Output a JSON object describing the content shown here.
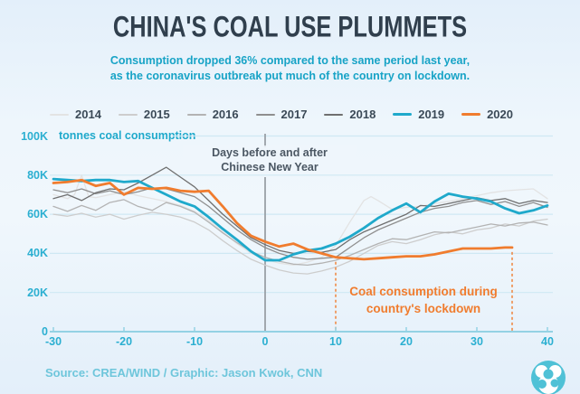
{
  "title": "CHINA'S COAL USE PLUMMETS",
  "subtitle_line1": "Consumption dropped 36% compared to the same period last year,",
  "subtitle_line2": "as the coronavirus outbreak put much of the country on lockdown.",
  "unit_label": "tonnes coal consumption",
  "annotations": {
    "cny_line1": "Days before and after",
    "cny_line2": "Chinese New Year",
    "lockdown_line1": "Coal consumption during",
    "lockdown_line2": "country's lockdown"
  },
  "source": "Source: CREA/WIND / Graphic: Jason Kwok, CNN",
  "logo_name": "crea-cnn-logo",
  "colors": {
    "title": "#303f4d",
    "subtitle": "#17a3c6",
    "axis_text": "#2bafd1",
    "axis_line": "#94d2e4",
    "gridline": "#cfe8f3",
    "cny_line": "#9aa0a6",
    "annotation_text": "#4b5763",
    "lockdown": "#f07c2e",
    "source_text": "#6ec6db",
    "logo": "#4fc1d6",
    "background_top": "#e3effa"
  },
  "chart_data": {
    "type": "line",
    "title": "CHINA'S COAL USE PLUMMETS",
    "xlabel": "Days before and after Chinese New Year",
    "ylabel": "tonnes coal consumption",
    "values_unit": "thousand tonnes (K)",
    "xlim": [
      -30,
      40
    ],
    "ylim_k": [
      0,
      100
    ],
    "grid": true,
    "legend_position": "top",
    "x_ticks": [
      -30,
      -20,
      -10,
      0,
      10,
      20,
      30,
      40
    ],
    "y_ticks": [
      {
        "label": "100K",
        "value": 100
      },
      {
        "label": "80K",
        "value": 80
      },
      {
        "label": "60K",
        "value": 60
      },
      {
        "label": "40K",
        "value": 40
      },
      {
        "label": "20K",
        "value": 20
      },
      {
        "label": "0",
        "value": 0
      }
    ],
    "cny_day": 0,
    "lockdown_span_days": [
      10,
      35
    ],
    "series": [
      {
        "name": "2014",
        "color": "#e3e3e3",
        "width": 1.3,
        "x": [
          -30,
          -28,
          -27,
          -26,
          -25,
          -24,
          -22,
          -20,
          -18,
          -16,
          -14,
          -12,
          -10,
          -8,
          -6,
          -4,
          -2,
          0,
          2,
          4,
          6,
          8,
          10,
          12,
          14,
          15,
          16,
          18,
          20,
          22,
          24,
          26,
          28,
          30,
          32,
          34,
          36,
          38,
          40
        ],
        "y": [
          70,
          68,
          70,
          80,
          69,
          68.5,
          70,
          71.5,
          69.5,
          68,
          66.5,
          64.5,
          61.5,
          57,
          51,
          45,
          40,
          37,
          35,
          34,
          35.5,
          38,
          44,
          56,
          67,
          69,
          67,
          62.5,
          63.5,
          64,
          65.5,
          66.5,
          68,
          69.5,
          71,
          72,
          72.5,
          73,
          68
        ]
      },
      {
        "name": "2015",
        "color": "#cdcdcd",
        "width": 1.3,
        "x": [
          -30,
          -28,
          -26,
          -24,
          -22,
          -20,
          -18,
          -16,
          -14,
          -12,
          -10,
          -8,
          -6,
          -4,
          -2,
          0,
          2,
          4,
          6,
          8,
          10,
          12,
          14,
          16,
          18,
          20,
          22,
          24,
          26,
          28,
          30,
          32,
          34,
          36,
          38,
          40
        ],
        "y": [
          60,
          59,
          60.5,
          58.5,
          60,
          57.5,
          59.5,
          61,
          60,
          58.5,
          56,
          52,
          46.5,
          41.5,
          37,
          34,
          31.5,
          30,
          29.5,
          31,
          33,
          36,
          40,
          44,
          46,
          45,
          47,
          49.5,
          51,
          50,
          52,
          53,
          55,
          54,
          56.5,
          57.5
        ]
      },
      {
        "name": "2016",
        "color": "#b3b3b3",
        "width": 1.3,
        "x": [
          -30,
          -28,
          -26,
          -24,
          -22,
          -20,
          -18,
          -16,
          -14,
          -12,
          -10,
          -8,
          -6,
          -4,
          -2,
          0,
          2,
          4,
          6,
          8,
          10,
          12,
          14,
          16,
          18,
          20,
          22,
          24,
          26,
          28,
          30,
          32,
          34,
          36,
          38,
          40
        ],
        "y": [
          64,
          61.5,
          64.5,
          62,
          66,
          67.5,
          64,
          62,
          66,
          64,
          61,
          56,
          50.5,
          45.5,
          41,
          38,
          36,
          34.5,
          34,
          35,
          36.5,
          39,
          42,
          45,
          47.5,
          47,
          49,
          51,
          50.5,
          52,
          53.5,
          55,
          54,
          55.5,
          56,
          54.5
        ]
      },
      {
        "name": "2017",
        "color": "#8f8f8f",
        "width": 1.3,
        "x": [
          -30,
          -28,
          -26,
          -24,
          -22,
          -20,
          -18,
          -16,
          -14,
          -12,
          -10,
          -8,
          -6,
          -4,
          -2,
          0,
          2,
          4,
          6,
          8,
          10,
          12,
          14,
          16,
          18,
          20,
          22,
          24,
          26,
          28,
          30,
          32,
          34,
          36,
          38,
          40
        ],
        "y": [
          72.5,
          71,
          73,
          70.5,
          72,
          70,
          71.5,
          73.5,
          73,
          71,
          69,
          64,
          58,
          52,
          47,
          43,
          40,
          38,
          37,
          37.5,
          38,
          43,
          48,
          52,
          55,
          58,
          61,
          63,
          64,
          66,
          67,
          65,
          66.5,
          64,
          66,
          63.5
        ]
      },
      {
        "name": "2018",
        "color": "#6f6f6f",
        "width": 1.3,
        "x": [
          -30,
          -28,
          -26,
          -24,
          -22,
          -20,
          -18,
          -16,
          -14,
          -12,
          -10,
          -8,
          -6,
          -4,
          -2,
          0,
          2,
          4,
          6,
          8,
          10,
          12,
          14,
          16,
          18,
          20,
          22,
          24,
          26,
          28,
          30,
          32,
          34,
          36,
          38,
          40
        ],
        "y": [
          68,
          70,
          67,
          71,
          73,
          72.5,
          76,
          80,
          84,
          79,
          74,
          67,
          60,
          54,
          48,
          44.5,
          41.5,
          40,
          41,
          40.5,
          42,
          47,
          51,
          54,
          57,
          60,
          64.5,
          64,
          65.5,
          67,
          68.5,
          67,
          68,
          65.5,
          67,
          66
        ]
      },
      {
        "name": "2019",
        "color": "#1fa9cb",
        "width": 2.8,
        "x": [
          -30,
          -28,
          -26,
          -24,
          -22,
          -20,
          -18,
          -16,
          -14,
          -12,
          -10,
          -8,
          -6,
          -4,
          -2,
          0,
          2,
          4,
          6,
          8,
          10,
          12,
          14,
          16,
          18,
          20,
          22,
          24,
          26,
          28,
          30,
          32,
          34,
          36,
          38,
          40
        ],
        "y": [
          78,
          77.5,
          77,
          77.5,
          77.5,
          76.5,
          77,
          73.5,
          70,
          66.5,
          64,
          58.5,
          52.5,
          47,
          41,
          36.5,
          36.5,
          39.5,
          41.5,
          42.5,
          45,
          48.5,
          53,
          58,
          62,
          65.5,
          61,
          66.5,
          70.5,
          69,
          68,
          66.5,
          63,
          60.5,
          62,
          64.5
        ]
      },
      {
        "name": "2020",
        "color": "#f07c2e",
        "width": 2.8,
        "x": [
          -30,
          -28,
          -26,
          -24,
          -22,
          -20,
          -18,
          -16,
          -14,
          -12,
          -10,
          -8,
          -6,
          -4,
          -2,
          0,
          2,
          4,
          6,
          8,
          10,
          12,
          14,
          16,
          18,
          20,
          22,
          24,
          26,
          28,
          30,
          32,
          34,
          35
        ],
        "y": [
          76,
          76.5,
          77.5,
          74.5,
          76,
          70,
          73.5,
          73,
          73.5,
          72,
          71.5,
          72,
          64,
          55.5,
          49,
          46,
          43.5,
          45,
          42,
          40,
          38,
          37.5,
          37,
          37.5,
          38,
          38.5,
          38.5,
          39.5,
          41,
          42.5,
          42.5,
          42.5,
          43,
          43
        ]
      }
    ]
  }
}
